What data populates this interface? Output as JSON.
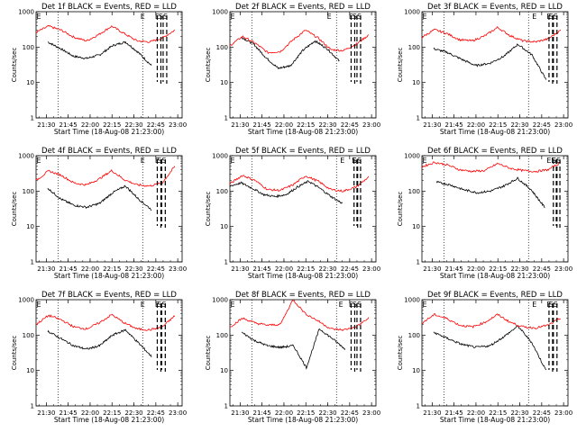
{
  "figure": {
    "xlabel": "Start Time (18-Aug-08 21:23:00)",
    "ylabel": "Counts/sec",
    "xticks": [
      "21:30",
      "21:45",
      "22:00",
      "22:15",
      "22:30",
      "22:45",
      "23:00"
    ],
    "yticks": [
      "1",
      "10",
      "100",
      "1000"
    ]
  },
  "chart_data": [
    {
      "type": "line",
      "title": "Det 1f BLACK = Events, RED = LLD",
      "x_range": [
        "21:23",
        "23:03"
      ],
      "ylim": [
        1,
        1000
      ],
      "y_scale": "log",
      "series": [
        {
          "color": "#000000",
          "start": "21:31",
          "end": "22:42",
          "values": [
            140,
            90,
            55,
            48,
            60,
            110,
            140,
            70,
            30
          ]
        },
        {
          "color": "#ff0000",
          "start": "21:23",
          "end": "22:58",
          "values": [
            260,
            390,
            300,
            190,
            150,
            230,
            390,
            240,
            150,
            140,
            180,
            300
          ]
        }
      ],
      "markers": [
        {
          "label": "E",
          "time": "22:36"
        },
        {
          "label": "E",
          "time": "22:46"
        },
        {
          "label": "SS",
          "time": "22:50"
        }
      ]
    },
    {
      "type": "line",
      "title": "Det 2f BLACK = Events, RED = LLD",
      "x_range": [
        "21:23",
        "23:03"
      ],
      "ylim": [
        1,
        1000
      ],
      "y_scale": "log",
      "series": [
        {
          "color": "#000000",
          "start": "21:31",
          "end": "22:38",
          "values": [
            190,
            120,
            50,
            25,
            30,
            80,
            150,
            90,
            40
          ]
        },
        {
          "color": "#ff0000",
          "start": "21:23",
          "end": "22:58",
          "values": [
            110,
            200,
            130,
            70,
            75,
            160,
            300,
            180,
            85,
            80,
            120,
            220
          ]
        }
      ],
      "markers": [
        {
          "label": "E",
          "time": "22:31"
        },
        {
          "label": "E",
          "time": "22:46"
        },
        {
          "label": "SS",
          "time": "22:50"
        }
      ]
    },
    {
      "type": "line",
      "title": "Det 3f BLACK = Events, RED = LLD",
      "x_range": [
        "21:23",
        "23:03"
      ],
      "ylim": [
        1,
        1000
      ],
      "y_scale": "log",
      "series": [
        {
          "color": "#000000",
          "start": "21:31",
          "end": "22:48",
          "values": [
            90,
            70,
            45,
            30,
            35,
            55,
            120,
            60,
            12
          ]
        },
        {
          "color": "#ff0000",
          "start": "21:23",
          "end": "22:58",
          "values": [
            190,
            310,
            240,
            160,
            150,
            210,
            360,
            210,
            150,
            140,
            170,
            300
          ]
        }
      ],
      "markers": [
        {
          "label": "E",
          "time": "22:40"
        },
        {
          "label": "E",
          "time": "22:50"
        },
        {
          "label": "SS",
          "time": "22:53"
        }
      ]
    },
    {
      "type": "line",
      "title": "Det 4f BLACK = Events, RED = LLD",
      "x_range": [
        "21:23",
        "23:03"
      ],
      "ylim": [
        1,
        1000
      ],
      "y_scale": "log",
      "series": [
        {
          "color": "#000000",
          "start": "21:31",
          "end": "22:42",
          "values": [
            120,
            60,
            40,
            35,
            45,
            90,
            140,
            60,
            30
          ]
        },
        {
          "color": "#ff0000",
          "start": "21:23",
          "end": "22:58",
          "values": [
            200,
            370,
            280,
            170,
            150,
            220,
            380,
            210,
            150,
            140,
            170,
            500
          ]
        }
      ],
      "markers": [
        {
          "label": "E",
          "time": "22:36"
        },
        {
          "label": "E",
          "time": "22:46"
        },
        {
          "label": "SS",
          "time": "22:49"
        }
      ]
    },
    {
      "type": "line",
      "title": "Det 5f BLACK = Events, RED = LLD",
      "x_range": [
        "21:23",
        "23:03"
      ],
      "ylim": [
        1,
        1000
      ],
      "y_scale": "log",
      "series": [
        {
          "color": "#000000",
          "start": "21:23",
          "end": "22:40",
          "values": [
            140,
            170,
            120,
            80,
            70,
            80,
            130,
            190,
            120,
            70,
            45
          ]
        },
        {
          "color": "#ff0000",
          "start": "21:23",
          "end": "22:58",
          "values": [
            160,
            280,
            200,
            110,
            105,
            150,
            270,
            190,
            110,
            100,
            130,
            250
          ]
        }
      ],
      "markers": [
        {
          "label": "E",
          "time": "22:40"
        },
        {
          "label": "E",
          "time": "22:48"
        },
        {
          "label": "SS",
          "time": "22:50"
        }
      ]
    },
    {
      "type": "line",
      "title": "Det 6f BLACK = Events, RED = LLD",
      "x_range": [
        "21:23",
        "23:03"
      ],
      "ylim": [
        1,
        1000
      ],
      "y_scale": "log",
      "series": [
        {
          "color": "#000000",
          "start": "21:33",
          "end": "22:47",
          "values": [
            180,
            150,
            110,
            90,
            100,
            140,
            230,
            110,
            35
          ]
        },
        {
          "color": "#ff0000",
          "start": "21:23",
          "end": "22:58",
          "values": [
            480,
            650,
            550,
            400,
            360,
            380,
            600,
            440,
            380,
            360,
            400,
            650
          ]
        }
      ],
      "markers": [
        {
          "label": "E",
          "time": "22:50"
        },
        {
          "label": "E",
          "time": "22:53"
        },
        {
          "label": "SS",
          "time": "22:55"
        }
      ]
    },
    {
      "type": "line",
      "title": "Det 7f BLACK = Events, RED = LLD",
      "x_range": [
        "21:23",
        "23:03"
      ],
      "ylim": [
        1,
        1000
      ],
      "y_scale": "log",
      "series": [
        {
          "color": "#000000",
          "start": "21:31",
          "end": "22:42",
          "values": [
            130,
            80,
            50,
            40,
            50,
            100,
            140,
            60,
            25
          ]
        },
        {
          "color": "#ff0000",
          "start": "21:23",
          "end": "22:58",
          "values": [
            200,
            360,
            270,
            170,
            150,
            220,
            380,
            220,
            150,
            140,
            170,
            350
          ]
        }
      ],
      "markers": [
        {
          "label": "E",
          "time": "22:36"
        },
        {
          "label": "E",
          "time": "22:46"
        },
        {
          "label": "SS",
          "time": "22:49"
        }
      ]
    },
    {
      "type": "line",
      "title": "Det 8f BLACK = Events, RED = LLD",
      "x_range": [
        "21:23",
        "23:03"
      ],
      "ylim": [
        1,
        1000
      ],
      "y_scale": "log",
      "series": [
        {
          "color": "#000000",
          "start": "21:31",
          "end": "22:42",
          "values": [
            120,
            70,
            50,
            45,
            50,
            12,
            150,
            80,
            40
          ]
        },
        {
          "color": "#ff0000",
          "start": "21:23",
          "end": "22:58",
          "values": [
            170,
            300,
            220,
            190,
            200,
            1000,
            400,
            250,
            150,
            140,
            170,
            300
          ]
        }
      ],
      "markers": [
        {
          "label": "E",
          "time": "22:39"
        },
        {
          "label": "E",
          "time": "22:46"
        },
        {
          "label": "SS",
          "time": "22:50"
        }
      ]
    },
    {
      "type": "line",
      "title": "Det 9f BLACK = Events, RED = LLD",
      "x_range": [
        "21:23",
        "23:03"
      ],
      "ylim": [
        1,
        1000
      ],
      "y_scale": "log",
      "series": [
        {
          "color": "#000000",
          "start": "21:31",
          "end": "22:48",
          "values": [
            120,
            80,
            55,
            45,
            50,
            90,
            180,
            60,
            10
          ]
        },
        {
          "color": "#ff0000",
          "start": "21:23",
          "end": "22:58",
          "values": [
            220,
            380,
            290,
            190,
            170,
            230,
            380,
            230,
            170,
            160,
            190,
            300
          ]
        }
      ],
      "markers": [
        {
          "label": "E",
          "time": "22:40"
        },
        {
          "label": "E",
          "time": "22:50"
        },
        {
          "label": "SS",
          "time": "22:53"
        }
      ]
    }
  ]
}
